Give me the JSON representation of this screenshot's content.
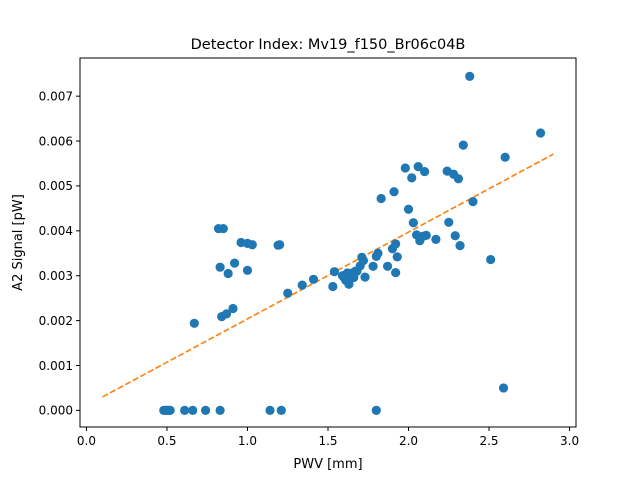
{
  "chart_data": {
    "type": "scatter",
    "title": "Detector Index: Mv19_f150_Br06c04B",
    "xlabel": "PWV [mm]",
    "ylabel": "A2 Signal [pW]",
    "xlim": [
      -0.04,
      3.04
    ],
    "ylim": [
      -0.00037,
      0.00785
    ],
    "xticks": [
      0.0,
      0.5,
      1.0,
      1.5,
      2.0,
      2.5,
      3.0
    ],
    "xtick_labels": [
      "0.0",
      "0.5",
      "1.0",
      "1.5",
      "2.0",
      "2.5",
      "3.0"
    ],
    "yticks": [
      0.0,
      0.001,
      0.002,
      0.003,
      0.004,
      0.005,
      0.006,
      0.007
    ],
    "ytick_labels": [
      "0.000",
      "0.001",
      "0.002",
      "0.003",
      "0.004",
      "0.005",
      "0.006",
      "0.007"
    ],
    "grid": false,
    "legend": "none",
    "colors": {
      "points": "#1f77b4",
      "fit": "#ff7f0e"
    },
    "series": [
      {
        "name": "measurements",
        "kind": "scatter",
        "x": [
          0.48,
          0.49,
          0.5,
          0.51,
          0.52,
          0.61,
          0.66,
          0.67,
          0.74,
          0.83,
          0.84,
          0.87,
          0.88,
          0.83,
          0.85,
          0.91,
          0.92,
          0.82,
          0.96,
          1.0,
          1.0,
          1.03,
          1.14,
          1.19,
          1.2,
          1.21,
          1.25,
          1.34,
          1.41,
          1.53,
          1.54,
          1.59,
          1.6,
          1.61,
          1.62,
          1.63,
          1.64,
          1.65,
          1.66,
          1.67,
          1.68,
          1.7,
          1.71,
          1.72,
          1.73,
          1.78,
          1.8,
          1.81,
          1.83,
          1.87,
          1.9,
          1.91,
          1.92,
          1.92,
          1.93,
          1.8,
          1.98,
          2.0,
          2.02,
          2.03,
          2.05,
          2.06,
          2.07,
          2.09,
          2.1,
          2.11,
          2.17,
          2.24,
          2.25,
          2.28,
          2.29,
          2.31,
          2.32,
          2.34,
          2.38,
          2.4,
          2.51,
          2.59,
          2.6,
          2.82
        ],
        "y": [
          0.0,
          0.0,
          0.0,
          0.0,
          0.0,
          0.0,
          0.0,
          0.00194,
          0.0,
          0.0,
          0.00209,
          0.00215,
          0.00305,
          0.00319,
          0.00405,
          0.00227,
          0.00328,
          0.00405,
          0.00374,
          0.00312,
          0.00372,
          0.00369,
          0.0,
          0.00368,
          0.00369,
          0.0,
          0.00261,
          0.00279,
          0.00292,
          0.00276,
          0.00309,
          0.003,
          0.00296,
          0.0029,
          0.00306,
          0.00281,
          0.00301,
          0.00306,
          0.00296,
          0.0031,
          0.0031,
          0.00322,
          0.00341,
          0.00334,
          0.00297,
          0.00321,
          0.00343,
          0.0035,
          0.00472,
          0.00321,
          0.0036,
          0.00487,
          0.00307,
          0.00371,
          0.00342,
          0.0,
          0.0054,
          0.00448,
          0.00518,
          0.00418,
          0.00391,
          0.00543,
          0.00378,
          0.00388,
          0.00532,
          0.0039,
          0.00381,
          0.00533,
          0.00419,
          0.00526,
          0.00389,
          0.00516,
          0.00367,
          0.00591,
          0.00744,
          0.00465,
          0.00336,
          0.0005,
          0.00564,
          0.00618
        ]
      },
      {
        "name": "linear fit",
        "kind": "line",
        "style": "dashed",
        "x": [
          0.1,
          2.9
        ],
        "y": [
          0.0003,
          0.00571
        ]
      }
    ]
  }
}
